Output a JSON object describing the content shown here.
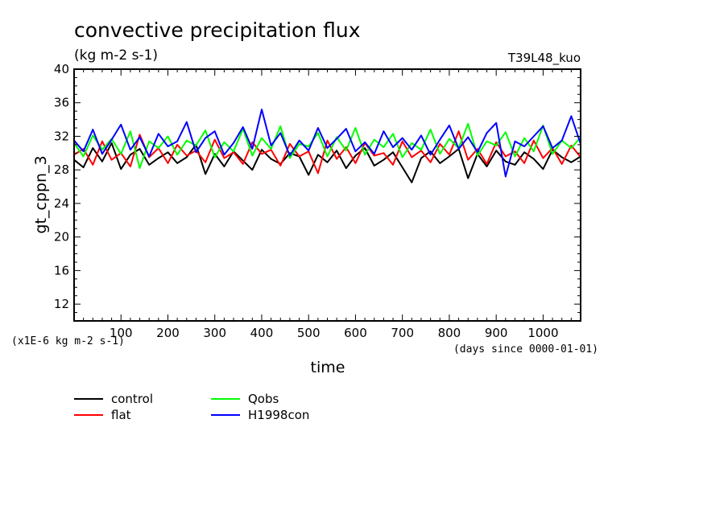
{
  "chart_data": {
    "type": "line",
    "title": "convective precipitation flux",
    "subtitle": "(kg m-2 s-1)",
    "run_label": "T39L48_kuo",
    "xlabel": "time",
    "x_unit_note": "(days since 0000-01-01)",
    "ylabel": "gt_cppn_3",
    "y_scale_note": "(x1E-6 kg m-2 s-1)",
    "xlim": [
      0,
      1080
    ],
    "ylim": [
      10,
      40
    ],
    "x_ticks": [
      100,
      200,
      300,
      400,
      500,
      600,
      700,
      800,
      900,
      1000
    ],
    "y_ticks": [
      12,
      16,
      20,
      24,
      28,
      32,
      36,
      40
    ],
    "grid": false,
    "legend_position": "bottom-left",
    "series": [
      {
        "name": "control",
        "color": "#000000",
        "x": [
          0,
          20,
          40,
          60,
          80,
          100,
          120,
          140,
          160,
          180,
          200,
          220,
          240,
          260,
          280,
          300,
          320,
          340,
          360,
          380,
          400,
          420,
          440,
          460,
          480,
          500,
          520,
          540,
          560,
          580,
          600,
          620,
          640,
          660,
          680,
          700,
          720,
          740,
          760,
          780,
          800,
          820,
          840,
          860,
          880,
          900,
          920,
          940,
          960,
          980,
          1000,
          1020,
          1040,
          1060,
          1080
        ],
        "values": [
          29.2,
          28.3,
          30.6,
          29.0,
          31.2,
          28.1,
          29.8,
          30.5,
          28.6,
          29.4,
          30.1,
          28.8,
          29.5,
          31.0,
          27.5,
          29.9,
          28.4,
          30.2,
          29.1,
          28.0,
          30.4,
          29.3,
          28.7,
          30.0,
          29.6,
          27.4,
          29.8,
          28.9,
          30.3,
          28.2,
          29.7,
          30.6,
          28.5,
          29.2,
          30.1,
          28.3,
          26.5,
          29.4,
          30.2,
          28.8,
          29.6,
          30.5,
          27.0,
          29.9,
          28.4,
          30.3,
          29.0,
          28.6,
          30.1,
          29.3,
          28.1,
          30.4,
          29.5,
          28.9,
          29.6
        ]
      },
      {
        "name": "flat",
        "color": "#ff0000",
        "x": [
          0,
          20,
          40,
          60,
          80,
          100,
          120,
          140,
          160,
          180,
          200,
          220,
          240,
          260,
          280,
          300,
          320,
          340,
          360,
          380,
          400,
          420,
          440,
          460,
          480,
          500,
          520,
          540,
          560,
          580,
          600,
          620,
          640,
          660,
          680,
          700,
          720,
          740,
          760,
          780,
          800,
          820,
          840,
          860,
          880,
          900,
          920,
          940,
          960,
          980,
          1000,
          1020,
          1040,
          1060,
          1080
        ],
        "values": [
          29.8,
          30.5,
          28.6,
          31.4,
          29.2,
          30.0,
          28.4,
          32.2,
          29.5,
          30.6,
          28.8,
          31.0,
          29.7,
          30.3,
          28.9,
          31.6,
          29.4,
          30.1,
          28.7,
          31.3,
          29.9,
          30.4,
          28.5,
          31.1,
          29.6,
          30.2,
          27.6,
          31.5,
          29.3,
          30.7,
          28.8,
          31.2,
          29.7,
          30.0,
          28.6,
          31.4,
          29.5,
          30.3,
          28.9,
          31.1,
          29.8,
          32.6,
          29.2,
          30.5,
          28.7,
          31.3,
          29.6,
          30.2,
          28.8,
          31.5,
          29.4,
          30.6,
          28.7,
          30.9,
          29.5
        ]
      },
      {
        "name": "Qobs",
        "color": "#00ff00",
        "x": [
          0,
          20,
          40,
          60,
          80,
          100,
          120,
          140,
          160,
          180,
          200,
          220,
          240,
          260,
          280,
          300,
          320,
          340,
          360,
          380,
          400,
          420,
          440,
          460,
          480,
          500,
          520,
          540,
          560,
          580,
          600,
          620,
          640,
          660,
          680,
          700,
          720,
          740,
          760,
          780,
          800,
          820,
          840,
          860,
          880,
          900,
          920,
          940,
          960,
          980,
          1000,
          1020,
          1040,
          1060,
          1080
        ],
        "values": [
          31.2,
          29.6,
          32.1,
          30.4,
          31.7,
          29.9,
          32.6,
          28.2,
          31.4,
          30.6,
          32.0,
          29.8,
          31.5,
          30.9,
          32.7,
          29.5,
          31.3,
          30.2,
          32.9,
          29.7,
          31.8,
          30.5,
          33.2,
          29.4,
          31.1,
          30.8,
          32.4,
          29.6,
          31.9,
          30.3,
          33.0,
          29.8,
          31.6,
          30.7,
          32.3,
          29.5,
          31.2,
          30.4,
          32.8,
          29.9,
          31.7,
          30.6,
          33.5,
          29.7,
          31.4,
          30.9,
          32.5,
          29.6,
          31.8,
          30.2,
          33.3,
          29.9,
          31.5,
          30.6,
          31.9
        ]
      },
      {
        "name": "H1998con",
        "color": "#0000ff",
        "x": [
          0,
          20,
          40,
          60,
          80,
          100,
          120,
          140,
          160,
          180,
          200,
          220,
          240,
          260,
          280,
          300,
          320,
          340,
          360,
          380,
          400,
          420,
          440,
          460,
          480,
          500,
          520,
          540,
          560,
          580,
          600,
          620,
          640,
          660,
          680,
          700,
          720,
          740,
          760,
          780,
          800,
          820,
          840,
          860,
          880,
          900,
          920,
          940,
          960,
          980,
          1000,
          1020,
          1040,
          1060,
          1080
        ],
        "values": [
          31.5,
          30.2,
          32.8,
          29.9,
          31.6,
          33.4,
          30.4,
          31.9,
          29.6,
          32.3,
          30.8,
          31.4,
          33.7,
          30.1,
          31.8,
          32.6,
          29.8,
          31.2,
          33.1,
          30.5,
          35.2,
          30.9,
          32.4,
          29.7,
          31.5,
          30.3,
          33.0,
          30.6,
          31.7,
          32.9,
          30.2,
          31.3,
          29.9,
          32.6,
          30.7,
          31.8,
          30.4,
          32.1,
          29.8,
          31.6,
          33.3,
          30.5,
          31.9,
          30.1,
          32.4,
          33.6,
          27.2,
          31.4,
          30.8,
          32.0,
          33.2,
          30.6,
          31.5,
          34.4,
          31.1
        ]
      }
    ]
  }
}
